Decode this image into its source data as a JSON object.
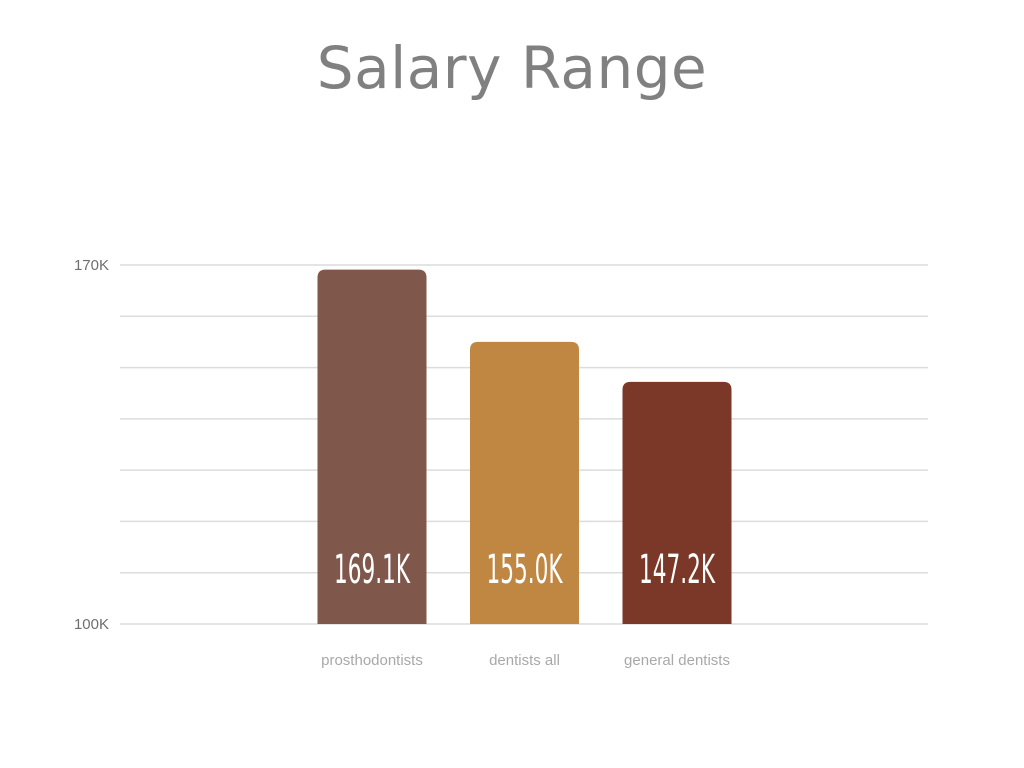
{
  "chart_data": {
    "type": "bar",
    "title": "Salary Range",
    "categories": [
      "prosthodontists",
      "dentists all",
      "general dentists"
    ],
    "values": [
      169.1,
      155.0,
      147.2
    ],
    "value_labels": [
      "169.1K",
      "155.0K",
      "147.2K"
    ],
    "bar_colors": [
      "#7f584b",
      "#c08743",
      "#7b3727"
    ],
    "ylim": [
      100,
      170
    ],
    "y_ticks": [
      100,
      110,
      120,
      130,
      140,
      150,
      160,
      170
    ],
    "y_tick_labels": [
      "100K",
      "170K"
    ],
    "xlabel": "",
    "ylabel": "",
    "grid": true,
    "legend": false
  }
}
